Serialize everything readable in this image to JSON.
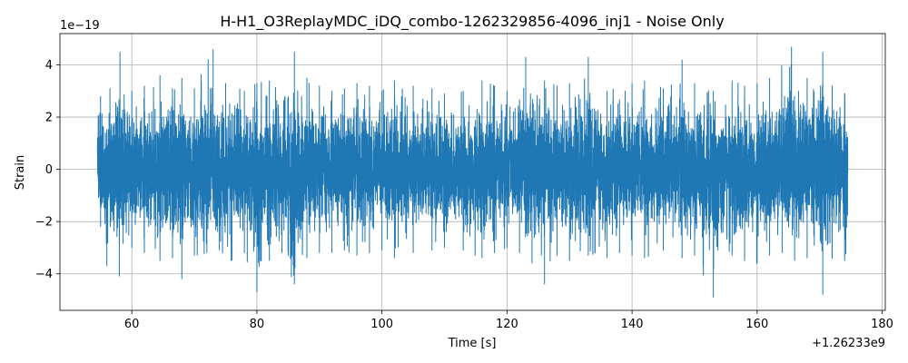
{
  "chart_data": {
    "type": "line",
    "title": "H-H1_O3ReplayMDC_iDQ_combo-1262329856-4096_inj1 - Noise Only",
    "xlabel": "Time [s]",
    "ylabel": "Strain",
    "x_offset_label": "+1.26233e9",
    "y_exponent_label": "1e−19",
    "xlim": [
      48.5,
      180.5
    ],
    "ylim": [
      -5.4,
      5.2
    ],
    "x_range": [
      54.5,
      174.5
    ],
    "x_ticks": [
      60,
      80,
      100,
      120,
      140,
      160,
      180
    ],
    "x_tick_labels": [
      "60",
      "80",
      "100",
      "120",
      "140",
      "160",
      "180"
    ],
    "y_ticks": [
      -4,
      -2,
      0,
      2,
      4
    ],
    "y_tick_labels": [
      "−4",
      "−2",
      "0",
      "2",
      "4"
    ],
    "grid": true,
    "series": [
      {
        "color": "#1f77b4",
        "envelope_upper": [
          [
            55.0,
            2.8
          ],
          [
            56.5,
            3.1
          ],
          [
            58.1,
            4.5
          ],
          [
            60.0,
            3.0
          ],
          [
            62.0,
            3.2
          ],
          [
            64.5,
            3.6
          ],
          [
            66.5,
            3.1
          ],
          [
            68.0,
            3.5
          ],
          [
            70.0,
            3.1
          ],
          [
            73.0,
            4.6
          ],
          [
            75.0,
            3.3
          ],
          [
            78.0,
            3.0
          ],
          [
            80.0,
            3.3
          ],
          [
            82.0,
            3.4
          ],
          [
            86.0,
            4.5
          ],
          [
            88.0,
            3.5
          ],
          [
            90.0,
            3.2
          ],
          [
            92.0,
            3.0
          ],
          [
            94.0,
            3.1
          ],
          [
            96.0,
            3.3
          ],
          [
            98.0,
            3.2
          ],
          [
            100.0,
            3.0
          ],
          [
            102.0,
            3.4
          ],
          [
            105.0,
            3.2
          ],
          [
            108.0,
            3.1
          ],
          [
            110.0,
            2.9
          ],
          [
            113.0,
            3.0
          ],
          [
            116.0,
            3.4
          ],
          [
            118.0,
            3.2
          ],
          [
            120.0,
            3.0
          ],
          [
            123.0,
            4.3
          ],
          [
            126.0,
            3.4
          ],
          [
            128.0,
            3.2
          ],
          [
            130.0,
            3.3
          ],
          [
            133.0,
            4.3
          ],
          [
            136.0,
            3.0
          ],
          [
            140.0,
            3.3
          ],
          [
            142.0,
            3.4
          ],
          [
            145.0,
            3.1
          ],
          [
            148.0,
            4.2
          ],
          [
            150.0,
            3.3
          ],
          [
            153.0,
            3.0
          ],
          [
            156.0,
            3.4
          ],
          [
            158.0,
            3.2
          ],
          [
            160.0,
            3.3
          ],
          [
            162.0,
            3.5
          ],
          [
            165.5,
            4.7
          ],
          [
            168.0,
            3.5
          ],
          [
            170.5,
            4.5
          ],
          [
            172.0,
            3.2
          ],
          [
            174.0,
            2.9
          ]
        ],
        "envelope_lower": [
          [
            55.0,
            -2.2
          ],
          [
            56.0,
            -3.7
          ],
          [
            58.0,
            -4.1
          ],
          [
            60.0,
            -3.0
          ],
          [
            62.0,
            -3.2
          ],
          [
            64.5,
            -3.5
          ],
          [
            66.5,
            -3.4
          ],
          [
            68.0,
            -4.2
          ],
          [
            70.0,
            -3.3
          ],
          [
            72.0,
            -3.2
          ],
          [
            74.0,
            -3.1
          ],
          [
            76.0,
            -3.5
          ],
          [
            78.0,
            -3.2
          ],
          [
            80.0,
            -4.7
          ],
          [
            82.0,
            -3.5
          ],
          [
            84.0,
            -3.2
          ],
          [
            86.0,
            -4.4
          ],
          [
            88.0,
            -3.4
          ],
          [
            90.0,
            -3.2
          ],
          [
            92.0,
            -3.2
          ],
          [
            94.0,
            -3.1
          ],
          [
            96.0,
            -3.3
          ],
          [
            98.0,
            -3.2
          ],
          [
            100.0,
            -3.1
          ],
          [
            102.0,
            -3.4
          ],
          [
            105.0,
            -3.2
          ],
          [
            108.0,
            -3.1
          ],
          [
            110.0,
            -3.0
          ],
          [
            113.0,
            -3.1
          ],
          [
            116.0,
            -3.4
          ],
          [
            118.0,
            -3.2
          ],
          [
            120.0,
            -3.0
          ],
          [
            122.0,
            -3.2
          ],
          [
            124.0,
            -3.6
          ],
          [
            126.0,
            -4.4
          ],
          [
            128.0,
            -3.3
          ],
          [
            130.0,
            -3.5
          ],
          [
            133.0,
            -3.3
          ],
          [
            136.0,
            -3.4
          ],
          [
            138.0,
            -3.2
          ],
          [
            140.0,
            -3.3
          ],
          [
            142.0,
            -3.4
          ],
          [
            145.0,
            -3.1
          ],
          [
            148.0,
            -3.4
          ],
          [
            150.0,
            -3.3
          ],
          [
            153.0,
            -4.9
          ],
          [
            156.0,
            -3.3
          ],
          [
            158.0,
            -3.5
          ],
          [
            160.0,
            -3.6
          ],
          [
            162.0,
            -3.3
          ],
          [
            164.0,
            -3.2
          ],
          [
            166.0,
            -3.5
          ],
          [
            168.0,
            -3.4
          ],
          [
            170.5,
            -4.8
          ],
          [
            172.0,
            -3.4
          ],
          [
            174.0,
            -3.5
          ]
        ]
      }
    ]
  }
}
